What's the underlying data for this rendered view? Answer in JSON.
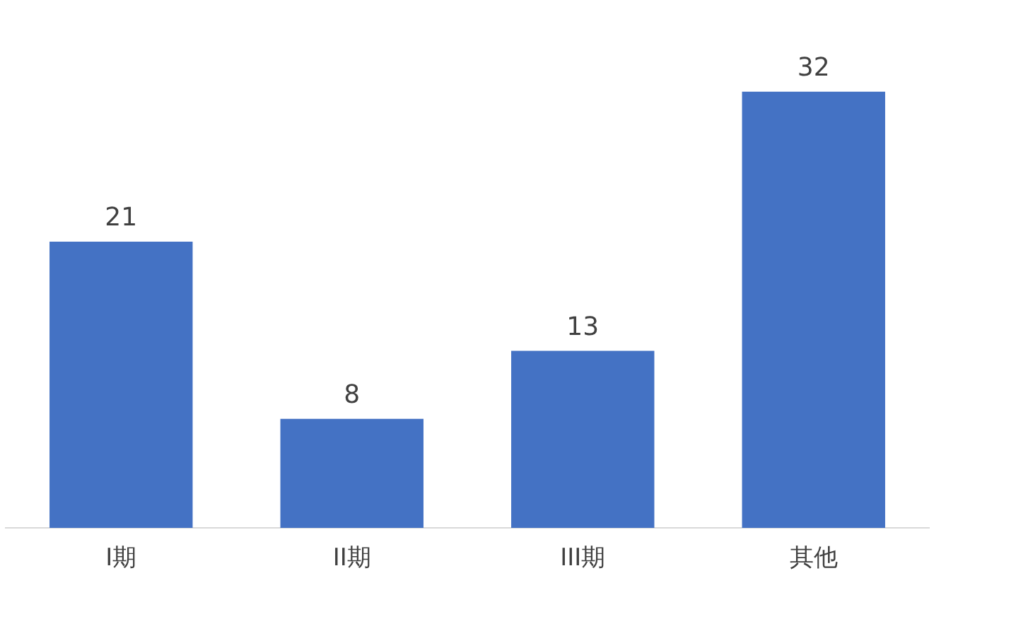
{
  "chart_data": {
    "type": "bar",
    "categories": [
      "I期",
      "II期",
      "III期",
      "其他"
    ],
    "values": [
      21,
      8,
      13,
      32
    ],
    "color": "#4472c4",
    "data_labels": true,
    "grid": false,
    "legend": false
  }
}
